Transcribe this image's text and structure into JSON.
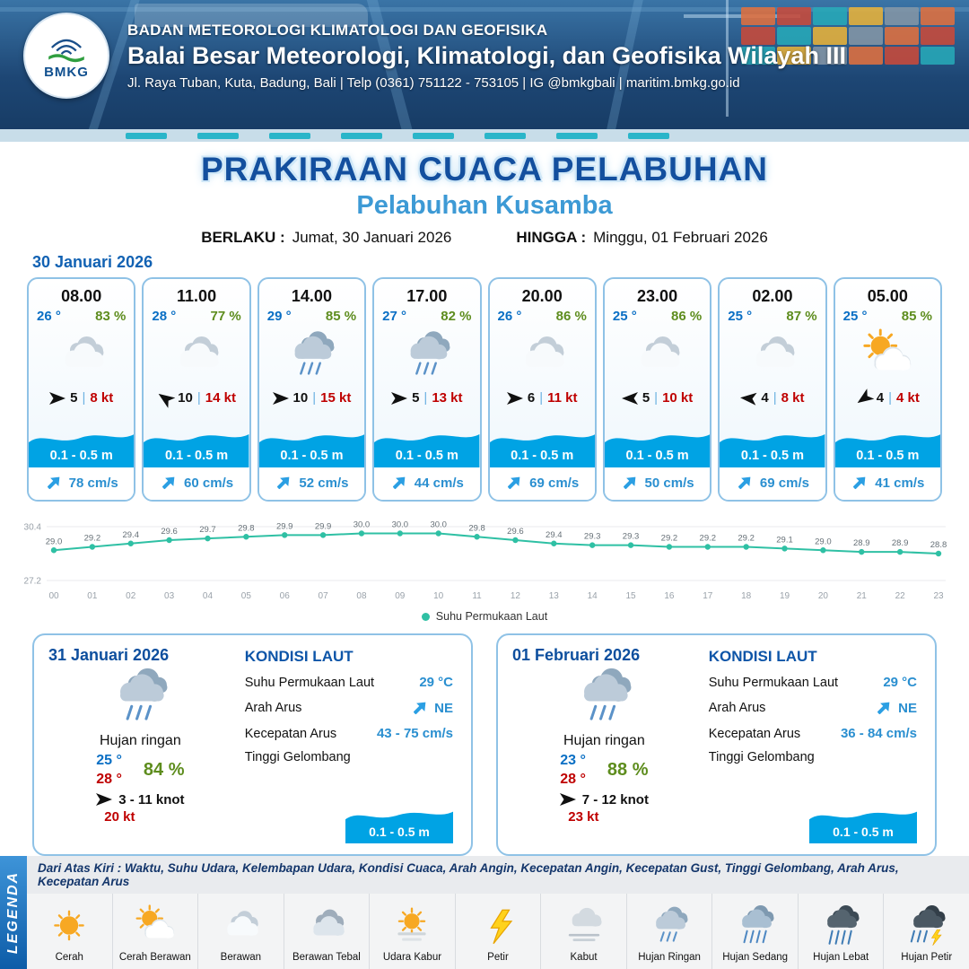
{
  "header": {
    "logo_text": "BMKG",
    "agency": "BADAN METEOROLOGI KLIMATOLOGI DAN GEOFISIKA",
    "office": "Balai Besar Meteorologi, Klimatologi, dan Geofisika Wilayah III",
    "address": "Jl. Raya Tuban, Kuta, Badung, Bali | Telp (0361) 751122 - 753105 | IG @bmkgbali | maritim.bmkg.go.id"
  },
  "title": {
    "main": "PRAKIRAAN CUACA PELABUHAN",
    "port": "Pelabuhan Kusamba",
    "valid_label": "BERLAKU :",
    "valid_value": "Jumat, 30 Januari 2026",
    "until_label": "HINGGA :",
    "until_value": "Minggu, 01 Februari 2026"
  },
  "forecast_date": "30 Januari 2026",
  "labels": {
    "wind_separator": "|"
  },
  "colors": {
    "accent_blue": "#1262b3",
    "wave_blue": "#00a3e4",
    "humidity_green": "#5e8d1e",
    "gust_red": "#bf0000",
    "sst_line": "#2fc0a4"
  },
  "hourly": [
    {
      "time": "08.00",
      "temp": "26 °",
      "humidity": "83 %",
      "icon": "berawan",
      "wind_dir_deg": 0,
      "wind": "5",
      "gust": "8 kt",
      "wave": "0.1 - 0.5 m",
      "current": "78 cm/s"
    },
    {
      "time": "11.00",
      "temp": "28 °",
      "humidity": "77 %",
      "icon": "berawan",
      "wind_dir_deg": 215,
      "wind": "10",
      "gust": "14 kt",
      "wave": "0.1 - 0.5 m",
      "current": "60 cm/s"
    },
    {
      "time": "14.00",
      "temp": "29 °",
      "humidity": "85 %",
      "icon": "hujan-ringan",
      "wind_dir_deg": 0,
      "wind": "10",
      "gust": "15 kt",
      "wave": "0.1 - 0.5 m",
      "current": "52 cm/s"
    },
    {
      "time": "17.00",
      "temp": "27 °",
      "humidity": "82 %",
      "icon": "hujan-ringan",
      "wind_dir_deg": 0,
      "wind": "5",
      "gust": "13 kt",
      "wave": "0.1 - 0.5 m",
      "current": "44 cm/s"
    },
    {
      "time": "20.00",
      "temp": "26 °",
      "humidity": "86 %",
      "icon": "berawan",
      "wind_dir_deg": 0,
      "wind": "6",
      "gust": "11 kt",
      "wave": "0.1 - 0.5 m",
      "current": "69 cm/s"
    },
    {
      "time": "23.00",
      "temp": "25 °",
      "humidity": "86 %",
      "icon": "berawan",
      "wind_dir_deg": 180,
      "wind": "5",
      "gust": "10 kt",
      "wave": "0.1 - 0.5 m",
      "current": "50 cm/s"
    },
    {
      "time": "02.00",
      "temp": "25 °",
      "humidity": "87 %",
      "icon": "berawan",
      "wind_dir_deg": 185,
      "wind": "4",
      "gust": "8 kt",
      "wave": "0.1 - 0.5 m",
      "current": "69 cm/s"
    },
    {
      "time": "05.00",
      "temp": "25 °",
      "humidity": "85 %",
      "icon": "cerah-berawan",
      "wind_dir_deg": 145,
      "wind": "4",
      "gust": "4 kt",
      "wave": "0.1 - 0.5 m",
      "current": "41 cm/s"
    }
  ],
  "chart_data": {
    "type": "line",
    "title": "",
    "legend": "Suhu Permukaan Laut",
    "xlabel": "",
    "ylabel": "",
    "x": [
      "00",
      "01",
      "02",
      "03",
      "04",
      "05",
      "06",
      "07",
      "08",
      "09",
      "10",
      "11",
      "12",
      "13",
      "14",
      "15",
      "16",
      "17",
      "18",
      "19",
      "20",
      "21",
      "22",
      "23"
    ],
    "values": [
      29.0,
      29.2,
      29.4,
      29.6,
      29.7,
      29.8,
      29.9,
      29.9,
      30.0,
      30.0,
      30.0,
      29.8,
      29.6,
      29.4,
      29.3,
      29.3,
      29.2,
      29.2,
      29.2,
      29.1,
      29.0,
      28.9,
      28.9,
      28.8
    ],
    "ylim": [
      27.2,
      30.4
    ],
    "line_color": "#2fc0a4",
    "grid": true,
    "legend_position": "bottom"
  },
  "daily": [
    {
      "date": "31 Januari 2026",
      "icon": "hujan-ringan",
      "condition": "Hujan ringan",
      "temp_min": "25 °",
      "temp_max": "28 °",
      "humidity": "84 %",
      "wind_dir_deg": 0,
      "wind_range": "3 - 11 knot",
      "gust": "20 kt",
      "sea": {
        "heading": "KONDISI LAUT",
        "sst_label": "Suhu Permukaan Laut",
        "sst_value": "29 °C",
        "dir_label": "Arah Arus",
        "dir_value": "NE",
        "speed_label": "Kecepatan Arus",
        "speed_value": "43 - 75 cm/s",
        "wave_label": "Tinggi Gelombang",
        "wave_value": "0.1 - 0.5 m"
      }
    },
    {
      "date": "01 Februari 2026",
      "icon": "hujan-ringan",
      "condition": "Hujan ringan",
      "temp_min": "23 °",
      "temp_max": "28 °",
      "humidity": "88 %",
      "wind_dir_deg": 0,
      "wind_range": "7 - 12 knot",
      "gust": "23 kt",
      "sea": {
        "heading": "KONDISI LAUT",
        "sst_label": "Suhu Permukaan Laut",
        "sst_value": "29 °C",
        "dir_label": "Arah Arus",
        "dir_value": "NE",
        "speed_label": "Kecepatan Arus",
        "speed_value": "36 - 84 cm/s",
        "wave_label": "Tinggi Gelombang",
        "wave_value": "0.1 - 0.5 m"
      }
    }
  ],
  "legend": {
    "title": "LEGENDA",
    "description": "Dari Atas Kiri : Waktu, Suhu Udara, Kelembapan Udara, Kondisi Cuaca, Arah Angin, Kecepatan Angin, Kecepatan Gust, Tinggi Gelombang, Arah Arus, Kecepatan Arus",
    "items": [
      {
        "label": "Cerah",
        "icon": "cerah"
      },
      {
        "label": "Cerah Berawan",
        "icon": "cerah-berawan"
      },
      {
        "label": "Berawan",
        "icon": "berawan"
      },
      {
        "label": "Berawan Tebal",
        "icon": "berawan-tebal"
      },
      {
        "label": "Udara Kabur",
        "icon": "udara-kabur"
      },
      {
        "label": "Petir",
        "icon": "petir"
      },
      {
        "label": "Kabut",
        "icon": "kabut"
      },
      {
        "label": "Hujan Ringan",
        "icon": "hujan-ringan"
      },
      {
        "label": "Hujan Sedang",
        "icon": "hujan-sedang"
      },
      {
        "label": "Hujan Lebat",
        "icon": "hujan-lebat"
      },
      {
        "label": "Hujan Petir",
        "icon": "hujan-petir"
      }
    ]
  }
}
